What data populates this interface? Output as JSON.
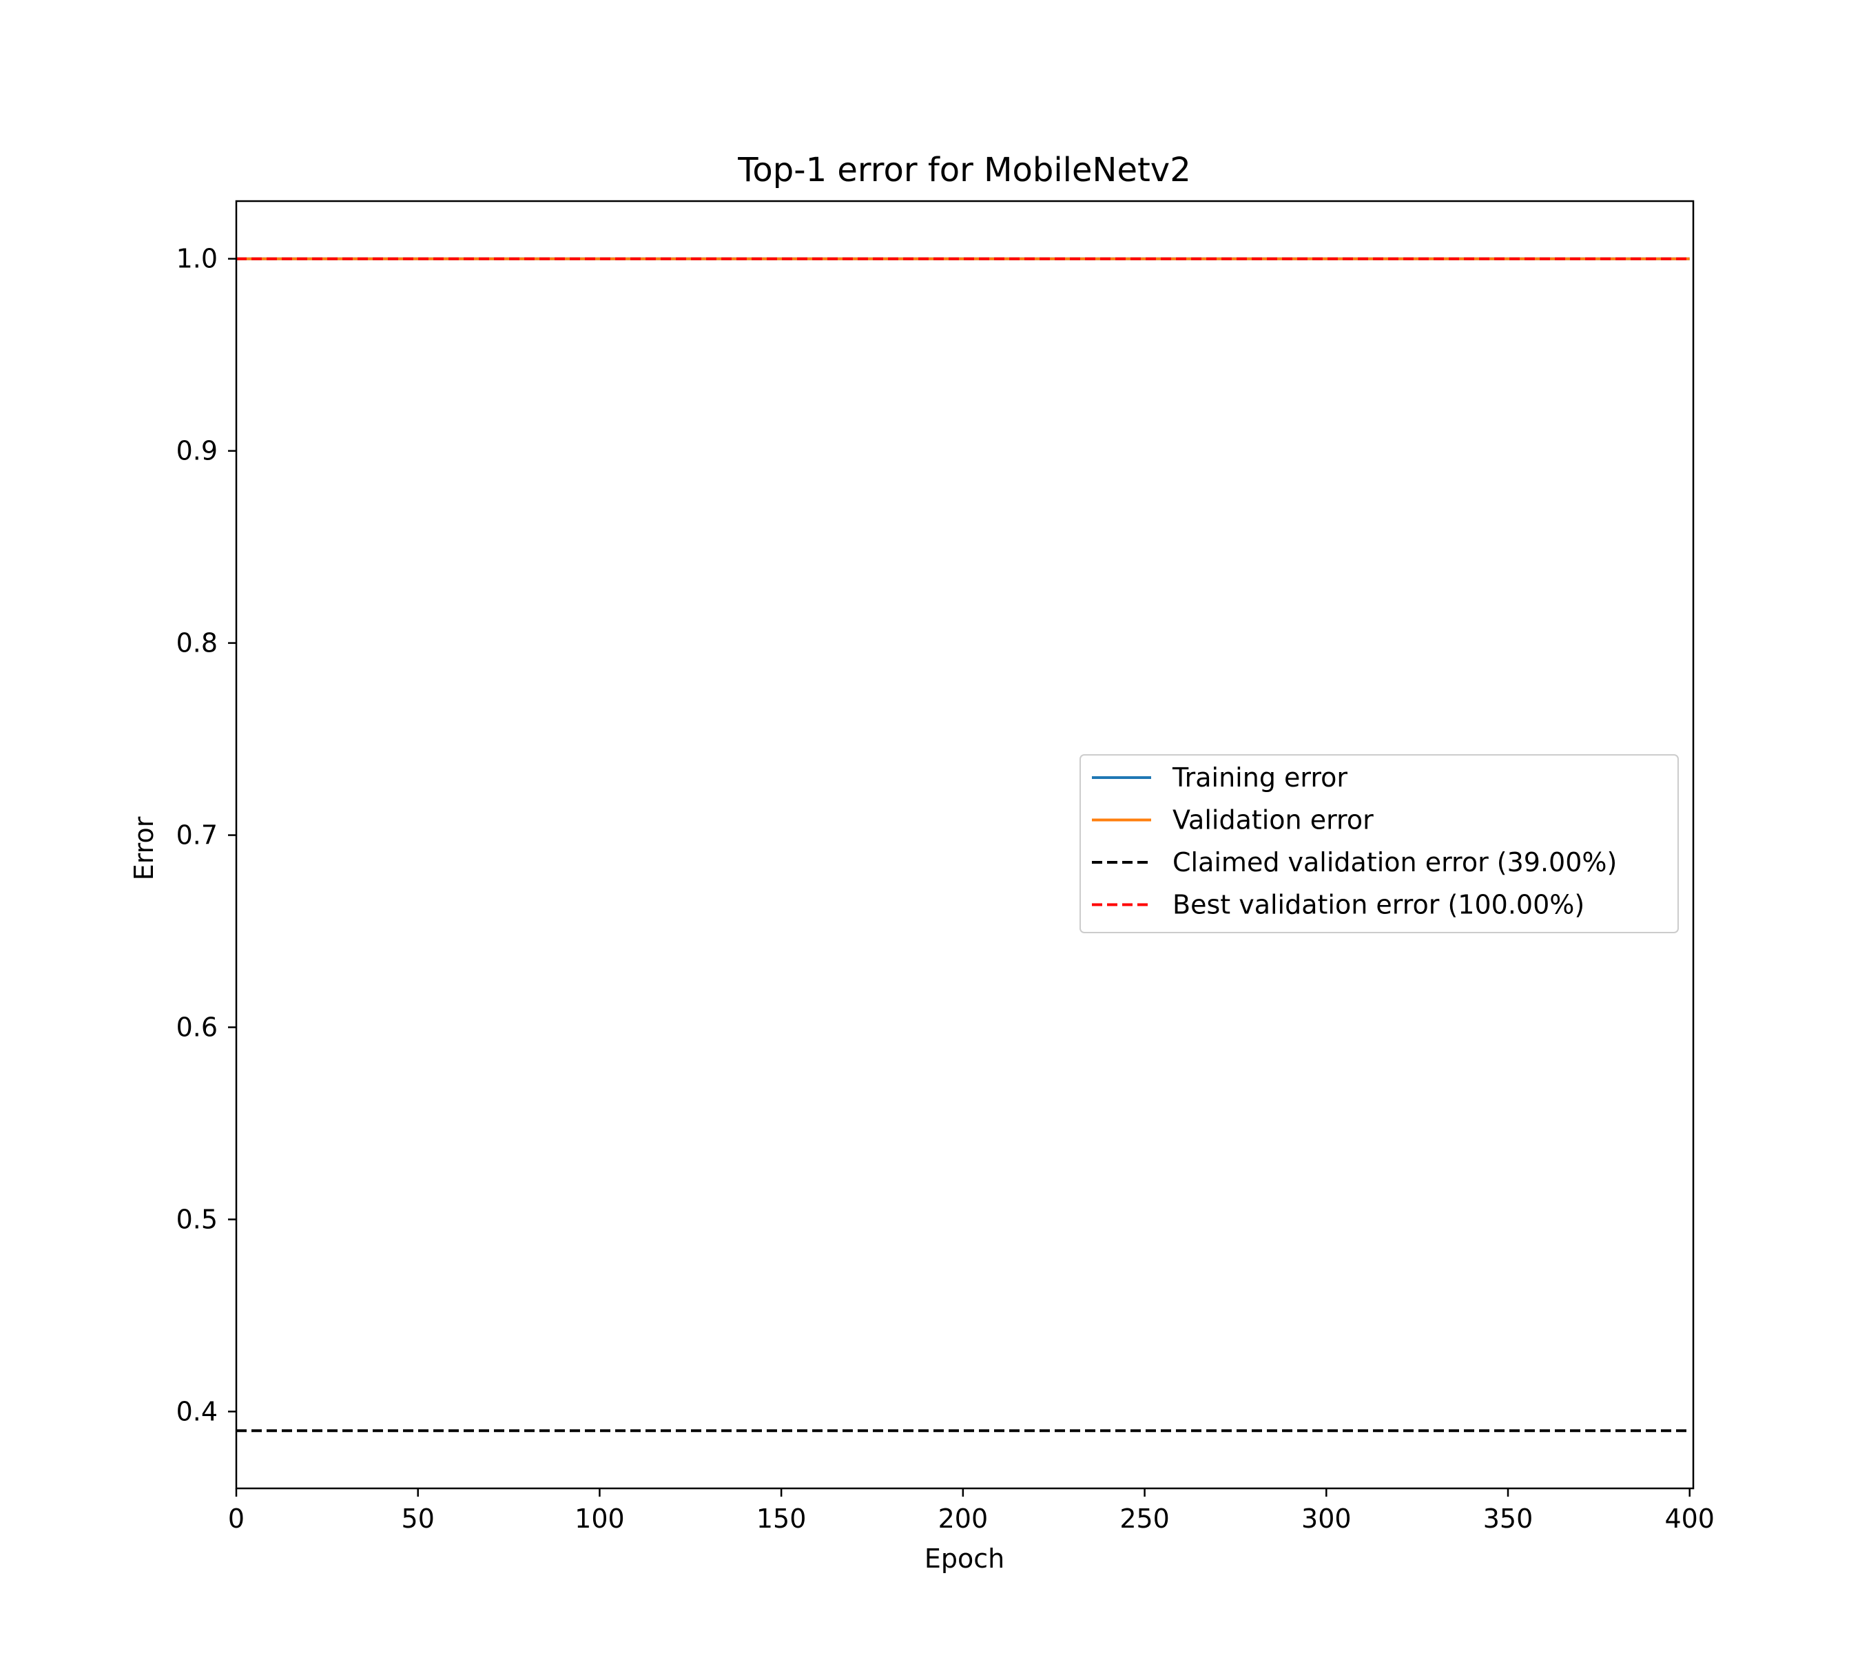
{
  "chart_data": {
    "type": "line",
    "title": "Top-1 error for MobileNetv2",
    "xlabel": "Epoch",
    "ylabel": "Error",
    "xlim": [
      0,
      401
    ],
    "ylim": [
      0.36,
      1.03
    ],
    "xticks": [
      0,
      50,
      100,
      150,
      200,
      250,
      300,
      350,
      400
    ],
    "xtick_labels": [
      "0",
      "50",
      "100",
      "150",
      "200",
      "250",
      "300",
      "350",
      "400"
    ],
    "yticks": [
      0.4,
      0.5,
      0.6,
      0.7,
      0.8,
      0.9,
      1.0
    ],
    "ytick_labels": [
      "0.4",
      "0.5",
      "0.6",
      "0.7",
      "0.8",
      "0.9",
      "1.0"
    ],
    "grid": false,
    "legend_position": "center-right",
    "series": [
      {
        "name": "Training error",
        "style": "solid",
        "color": "#1f77b4",
        "x": [
          0,
          400
        ],
        "y": [
          1.0,
          1.0
        ]
      },
      {
        "name": "Validation error",
        "style": "solid",
        "color": "#ff7f0e",
        "x": [
          0,
          400
        ],
        "y": [
          1.0,
          1.0
        ]
      },
      {
        "name": "Claimed validation error (39.00%)",
        "style": "dashed",
        "color": "#000000",
        "x": [
          0,
          400
        ],
        "y": [
          0.39,
          0.39
        ]
      },
      {
        "name": "Best validation error (100.00%)",
        "style": "dashed",
        "color": "#ff0000",
        "x": [
          0,
          400
        ],
        "y": [
          1.0,
          1.0
        ]
      }
    ]
  }
}
